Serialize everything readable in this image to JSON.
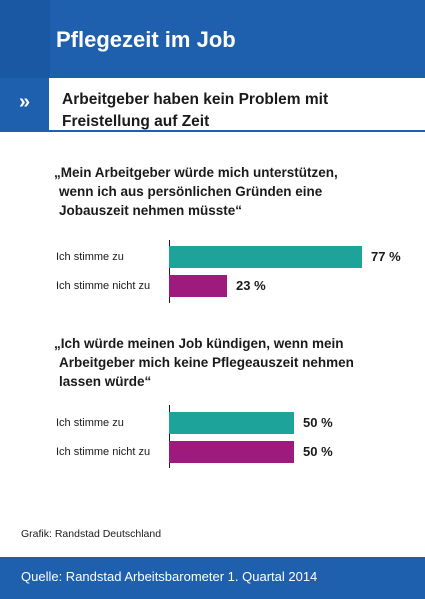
{
  "header": {
    "title": "Pflegezeit im Job"
  },
  "subheader": {
    "arrow": "»",
    "title": "Arbeitgeber haben kein Problem mit Freistellung auf Zeit"
  },
  "chart_data": [
    {
      "type": "bar",
      "orientation": "horizontal",
      "title_lines": [
        "„Mein Arbeitgeber würde mich unterstützen,",
        "wenn ich aus persönlichen Gründen eine",
        "Jobauszeit nehmen müsste“"
      ],
      "categories": [
        "Ich stimme zu",
        "Ich stimme nicht zu"
      ],
      "values": [
        77,
        23
      ],
      "value_labels": [
        "77 %",
        "23 %"
      ],
      "unit": "%",
      "colors": [
        "#1ea39a",
        "#9e1a7c"
      ],
      "xlim": [
        0,
        100
      ]
    },
    {
      "type": "bar",
      "orientation": "horizontal",
      "title_lines": [
        "„Ich würde meinen Job kündigen, wenn mein",
        "Arbeitgeber mich keine Pflegeauszeit nehmen",
        "lassen würde“"
      ],
      "categories": [
        "Ich stimme zu",
        "Ich stimme nicht zu"
      ],
      "values": [
        50,
        50
      ],
      "value_labels": [
        "50 %",
        "50 %"
      ],
      "unit": "%",
      "colors": [
        "#1ea39a",
        "#9e1a7c"
      ],
      "xlim": [
        0,
        100
      ]
    }
  ],
  "credit": "Grafik: Randstad Deutschland",
  "footer": {
    "source": "Quelle: Randstad Arbeitsbarometer 1. Quartal 2014"
  },
  "colors": {
    "brand_blue": "#1e5fae"
  }
}
